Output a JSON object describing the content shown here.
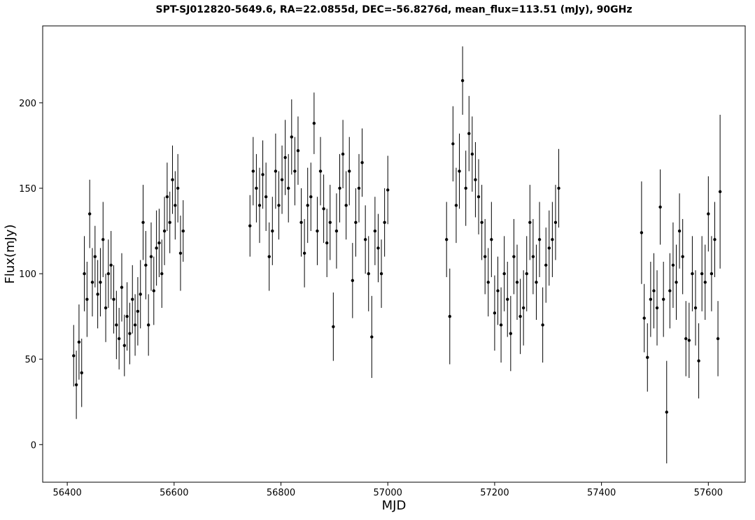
{
  "chart_data": {
    "type": "scatter",
    "title": "SPT-SJ012820-5649.6, RA=22.0855d, DEC=-56.8276d, mean_flux=113.51 (mJy), 90GHz",
    "x_label": "MJD",
    "y_label": "Flux(mJy)",
    "color": "#000000",
    "xlim": [
      56354,
      57669
    ],
    "ylim": [
      -22,
      245
    ],
    "xticks": [
      56400,
      56600,
      56800,
      57000,
      57200,
      57400,
      57600
    ],
    "yticks": [
      0,
      50,
      100,
      150,
      200
    ],
    "x": [
      56412,
      56417,
      56422,
      56427,
      56432,
      56437,
      56442,
      56447,
      56452,
      56457,
      56462,
      56467,
      56472,
      56477,
      56482,
      56487,
      56492,
      56497,
      56502,
      56507,
      56512,
      56517,
      56522,
      56527,
      56532,
      56537,
      56542,
      56547,
      56552,
      56557,
      56562,
      56567,
      56572,
      56577,
      56582,
      56587,
      56592,
      56597,
      56602,
      56607,
      56612,
      56617,
      56742,
      56748,
      56754,
      56760,
      56766,
      56772,
      56778,
      56784,
      56790,
      56796,
      56802,
      56808,
      56814,
      56820,
      56826,
      56832,
      56838,
      56844,
      56850,
      56856,
      56862,
      56868,
      56874,
      56880,
      56886,
      56892,
      56898,
      56904,
      56910,
      56916,
      56922,
      56928,
      56934,
      56940,
      56946,
      56952,
      56958,
      56964,
      56970,
      56976,
      56982,
      56988,
      56994,
      57000,
      57110,
      57116,
      57122,
      57128,
      57134,
      57140,
      57146,
      57152,
      57158,
      57164,
      57170,
      57176,
      57182,
      57188,
      57194,
      57200,
      57206,
      57212,
      57218,
      57224,
      57230,
      57236,
      57242,
      57248,
      57254,
      57260,
      57266,
      57272,
      57278,
      57284,
      57290,
      57296,
      57302,
      57308,
      57314,
      57320,
      57475,
      57480,
      57486,
      57492,
      57498,
      57504,
      57510,
      57516,
      57522,
      57528,
      57534,
      57540,
      57546,
      57552,
      57558,
      57564,
      57570,
      57576,
      57582,
      57588,
      57594,
      57600,
      57606,
      57612,
      57618,
      57622
    ],
    "values": [
      52,
      35,
      60,
      42,
      100,
      85,
      135,
      95,
      110,
      88,
      95,
      120,
      80,
      100,
      105,
      85,
      70,
      62,
      92,
      58,
      75,
      65,
      85,
      70,
      78,
      88,
      130,
      105,
      70,
      110,
      90,
      115,
      118,
      100,
      125,
      145,
      130,
      155,
      140,
      150,
      112,
      125,
      128,
      160,
      150,
      140,
      158,
      145,
      110,
      125,
      160,
      140,
      155,
      168,
      150,
      180,
      160,
      172,
      130,
      112,
      140,
      145,
      188,
      125,
      160,
      138,
      118,
      130,
      69,
      125,
      150,
      170,
      140,
      160,
      96,
      130,
      150,
      165,
      120,
      100,
      63,
      125,
      115,
      100,
      130,
      149,
      120,
      75,
      176,
      140,
      160,
      213,
      150,
      182,
      170,
      155,
      145,
      130,
      110,
      95,
      120,
      77,
      90,
      70,
      100,
      85,
      65,
      110,
      95,
      75,
      80,
      100,
      130,
      110,
      95,
      120,
      70,
      105,
      115,
      120,
      130,
      150,
      124,
      74,
      51,
      85,
      90,
      80,
      139,
      85,
      19,
      90,
      105,
      95,
      125,
      110,
      62,
      61,
      100,
      80,
      49,
      100,
      95,
      135,
      100,
      120,
      62,
      148
    ],
    "errors": [
      18,
      20,
      22,
      20,
      22,
      22,
      20,
      20,
      18,
      20,
      20,
      22,
      20,
      20,
      20,
      20,
      20,
      18,
      20,
      18,
      20,
      18,
      20,
      18,
      20,
      20,
      22,
      20,
      18,
      20,
      20,
      22,
      20,
      20,
      20,
      20,
      18,
      20,
      20,
      20,
      22,
      18,
      18,
      20,
      20,
      22,
      20,
      20,
      20,
      20,
      22,
      20,
      20,
      22,
      20,
      22,
      20,
      20,
      20,
      20,
      22,
      20,
      18,
      20,
      20,
      20,
      20,
      22,
      20,
      22,
      20,
      20,
      20,
      20,
      22,
      20,
      20,
      20,
      20,
      22,
      24,
      20,
      20,
      20,
      20,
      20,
      22,
      28,
      22,
      22,
      22,
      20,
      22,
      22,
      22,
      22,
      22,
      22,
      22,
      20,
      22,
      22,
      20,
      22,
      22,
      22,
      22,
      22,
      22,
      22,
      22,
      22,
      22,
      22,
      22,
      22,
      22,
      22,
      22,
      22,
      22,
      23,
      30,
      20,
      20,
      22,
      22,
      22,
      22,
      22,
      30,
      22,
      25,
      22,
      22,
      22,
      22,
      22,
      22,
      22,
      22,
      22,
      22,
      22,
      22,
      22,
      22,
      45
    ]
  }
}
